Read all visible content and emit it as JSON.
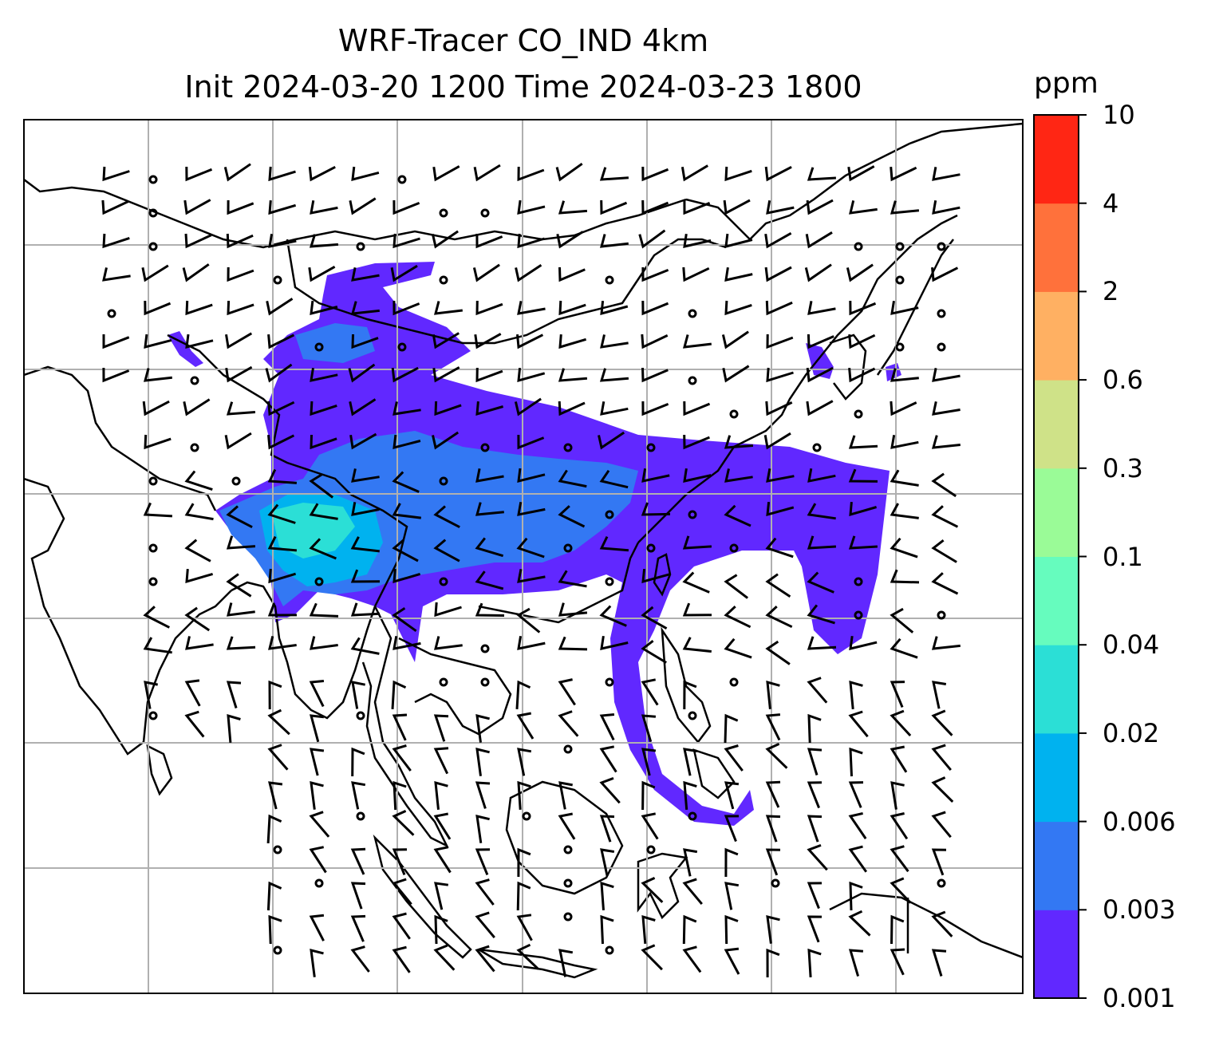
{
  "title": {
    "line1": "WRF-Tracer CO_IND 4km",
    "line2": "Init 2024-03-20 1200 Time 2024-03-23 1800"
  },
  "colorbar": {
    "unit": "ppm",
    "levels": [
      "0.001",
      "0.003",
      "0.006",
      "0.02",
      "0.04",
      "0.1",
      "0.3",
      "0.6",
      "2",
      "4",
      "10"
    ],
    "colors": [
      "#6128ff",
      "#3378f3",
      "#00b2ef",
      "#2bdfd6",
      "#66fcbe",
      "#9afb97",
      "#cfe288",
      "#ffb062",
      "#ff713b",
      "#ff2614"
    ]
  },
  "map": {
    "grid": "on",
    "coastline_color": "#000000",
    "grid_color": "#b0b0b0",
    "wind_barb_color": "#000000"
  }
}
